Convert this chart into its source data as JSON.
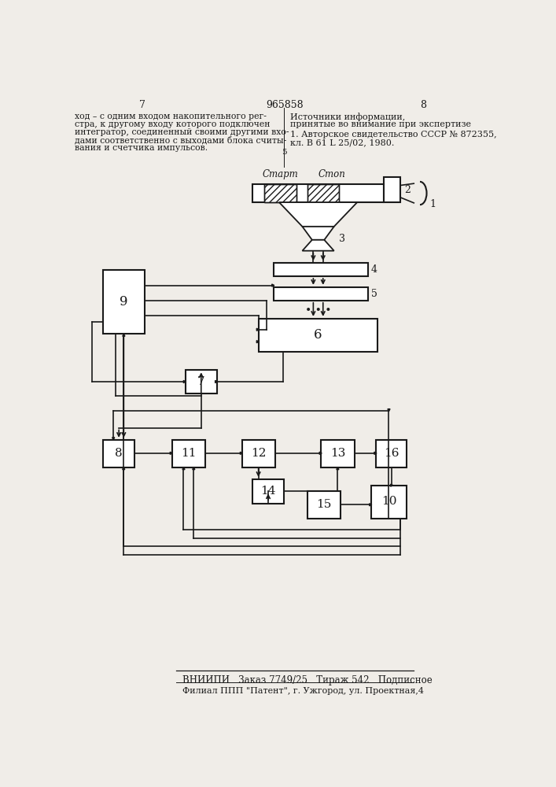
{
  "bg_color": "#f0ede8",
  "line_color": "#1a1a1a",
  "page_number_left": "7",
  "page_number_center": "965858",
  "page_number_right": "8",
  "footer1": "ВНИИПИ   Заказ 7749/25   Тираж 542   Подписное",
  "footer2": "Филиал ППП \"Патент\", г. Ужгород, ул. Проектная,4",
  "label_start": "Старт",
  "label_stop": "Стоп"
}
